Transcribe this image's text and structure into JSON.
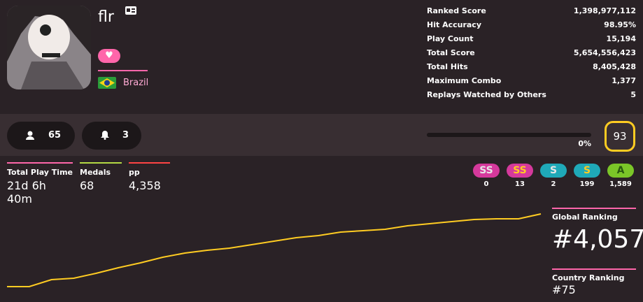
{
  "profile": {
    "username": "flr",
    "country": "Brazil"
  },
  "stats": [
    {
      "label": "Ranked Score",
      "value": "1,398,977,112"
    },
    {
      "label": "Hit Accuracy",
      "value": "98.95%"
    },
    {
      "label": "Play Count",
      "value": "15,194"
    },
    {
      "label": "Total Score",
      "value": "5,654,556,423"
    },
    {
      "label": "Total Hits",
      "value": "8,405,428"
    },
    {
      "label": "Maximum Combo",
      "value": "1,377"
    },
    {
      "label": "Replays Watched by Others",
      "value": "5"
    }
  ],
  "social": {
    "followers": "65",
    "notifications": "3"
  },
  "level": {
    "progress": {
      "value": 0,
      "label": "0%"
    },
    "level": "93"
  },
  "summary": [
    {
      "label": "Total Play Time",
      "value": "21d 6h 40m"
    },
    {
      "label": "Medals",
      "value": "68"
    },
    {
      "label": "pp",
      "value": "4,358"
    }
  ],
  "grades": [
    {
      "label": "SS",
      "count": "0"
    },
    {
      "label": "SS",
      "count": "13"
    },
    {
      "label": "S",
      "count": "2"
    },
    {
      "label": "S",
      "count": "199"
    },
    {
      "label": "A",
      "count": "1,589"
    }
  ],
  "chart_data": {
    "type": "line",
    "color": "#ffcc22",
    "ylim": [
      0,
      120
    ],
    "categories": [
      null,
      null,
      null,
      null,
      null,
      null,
      null,
      null,
      null,
      null,
      null,
      null,
      null,
      null,
      null,
      null,
      null,
      null,
      null,
      null,
      null,
      null,
      null,
      null,
      null
    ],
    "values": [
      10,
      10,
      20,
      22,
      29,
      37,
      44,
      52,
      58,
      62,
      65,
      70,
      75,
      80,
      83,
      88,
      90,
      92,
      97,
      100,
      103,
      106,
      107,
      107,
      114
    ]
  },
  "ranking": {
    "global_label": "Global Ranking",
    "global": "#4,057",
    "country_label": "Country Ranking",
    "country": "#75"
  }
}
